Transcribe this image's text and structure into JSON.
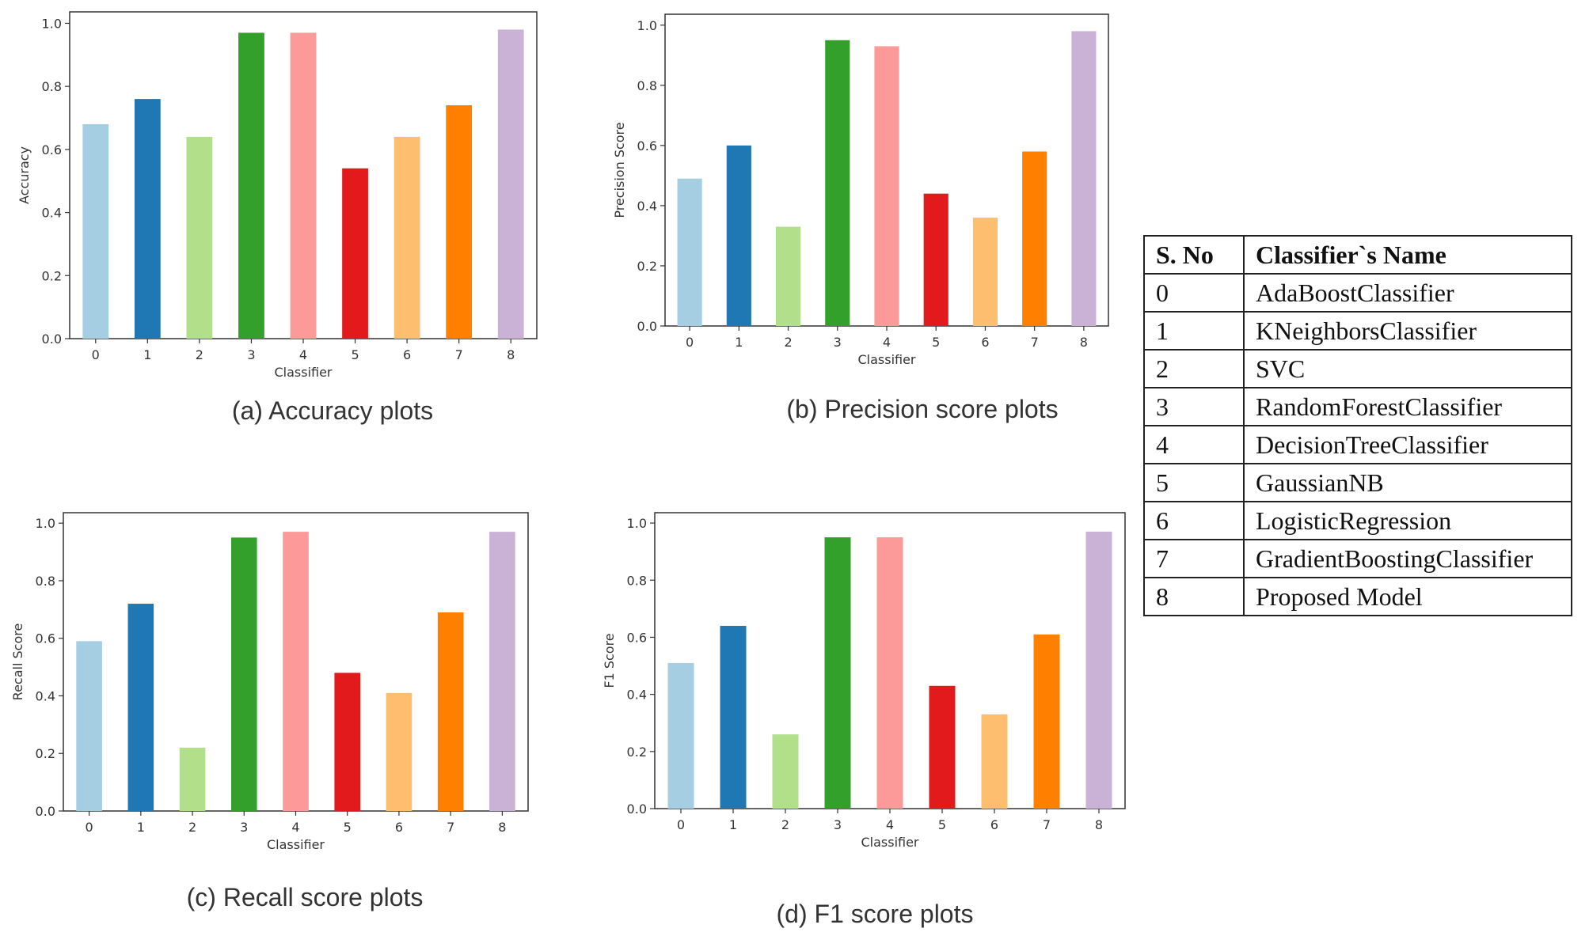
{
  "colors": [
    "#a6cee3",
    "#1f78b4",
    "#b2df8a",
    "#33a02c",
    "#fb9a99",
    "#e31a1c",
    "#fdbf6f",
    "#ff7f00",
    "#cab2d6"
  ],
  "chart_data": [
    {
      "type": "bar",
      "title": "",
      "caption": "(a)  Accuracy plots",
      "xlabel": "Classifier",
      "ylabel": "Accuracy",
      "categories": [
        "0",
        "1",
        "2",
        "3",
        "4",
        "5",
        "6",
        "7",
        "8"
      ],
      "values": [
        0.68,
        0.76,
        0.64,
        0.97,
        0.97,
        0.54,
        0.64,
        0.74,
        0.98
      ],
      "ylim": [
        0,
        1.0
      ],
      "yticks": [
        "0.0",
        "0.2",
        "0.4",
        "0.6",
        "0.8",
        "1.0"
      ],
      "grid": false
    },
    {
      "type": "bar",
      "title": "",
      "caption": "(b)  Precision score plots",
      "xlabel": "Classifier",
      "ylabel": "Precision Score",
      "categories": [
        "0",
        "1",
        "2",
        "3",
        "4",
        "5",
        "6",
        "7",
        "8"
      ],
      "values": [
        0.49,
        0.6,
        0.33,
        0.95,
        0.93,
        0.44,
        0.36,
        0.58,
        0.98
      ],
      "ylim": [
        0,
        1.0
      ],
      "yticks": [
        "0.0",
        "0.2",
        "0.4",
        "0.6",
        "0.8",
        "1.0"
      ],
      "grid": false
    },
    {
      "type": "bar",
      "title": "",
      "caption": "(c)  Recall score plots",
      "xlabel": "Classifier",
      "ylabel": "Recall Score",
      "categories": [
        "0",
        "1",
        "2",
        "3",
        "4",
        "5",
        "6",
        "7",
        "8"
      ],
      "values": [
        0.59,
        0.72,
        0.22,
        0.95,
        0.97,
        0.48,
        0.41,
        0.69,
        0.97
      ],
      "ylim": [
        0,
        1.0
      ],
      "yticks": [
        "0.0",
        "0.2",
        "0.4",
        "0.6",
        "0.8",
        "1.0"
      ],
      "grid": false
    },
    {
      "type": "bar",
      "title": "",
      "caption": "(d) F1 score plots",
      "xlabel": "Classifier",
      "ylabel": "F1 Score",
      "categories": [
        "0",
        "1",
        "2",
        "3",
        "4",
        "5",
        "6",
        "7",
        "8"
      ],
      "values": [
        0.51,
        0.64,
        0.26,
        0.95,
        0.95,
        0.43,
        0.33,
        0.61,
        0.97
      ],
      "ylim": [
        0,
        1.0
      ],
      "yticks": [
        "0.0",
        "0.2",
        "0.4",
        "0.6",
        "0.8",
        "1.0"
      ],
      "grid": false
    }
  ],
  "legend_table": {
    "header_num": "S. No",
    "header_name": "Classifier`s Name",
    "rows": [
      {
        "num": "0",
        "name": "AdaBoostClassifier"
      },
      {
        "num": "1",
        "name": "KNeighborsClassifier"
      },
      {
        "num": "2",
        "name": "SVC"
      },
      {
        "num": "3",
        "name": "RandomForestClassifier"
      },
      {
        "num": "4",
        "name": "DecisionTreeClassifier"
      },
      {
        "num": "5",
        "name": "GaussianNB"
      },
      {
        "num": "6",
        "name": "LogisticRegression"
      },
      {
        "num": "7",
        "name": "GradientBoostingClassifier"
      },
      {
        "num": "8",
        "name": "Proposed Model"
      }
    ]
  }
}
